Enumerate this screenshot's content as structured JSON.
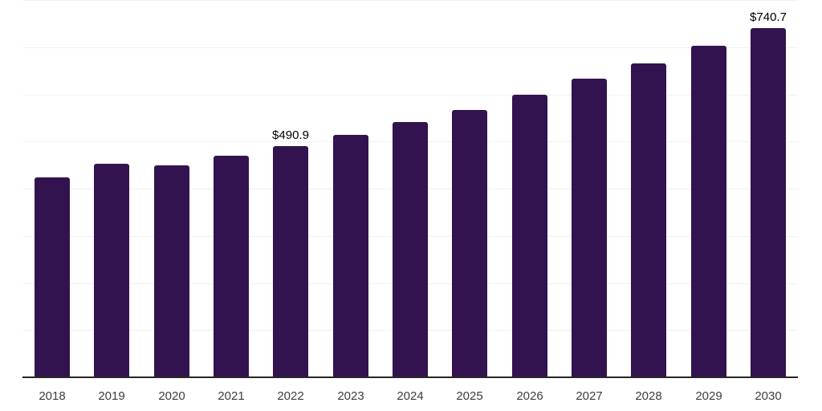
{
  "chart_data": {
    "type": "bar",
    "title": "",
    "xlabel": "",
    "ylabel": "",
    "categories": [
      "2018",
      "2019",
      "2020",
      "2021",
      "2022",
      "2023",
      "2024",
      "2025",
      "2026",
      "2027",
      "2028",
      "2029",
      "2030"
    ],
    "values": [
      424,
      452,
      449,
      469,
      490.9,
      514,
      541,
      566,
      599,
      633,
      666,
      703,
      740.7
    ],
    "annotations": [
      {
        "year": "2022",
        "text": "$490.9"
      },
      {
        "year": "2030",
        "text": "$740.7"
      }
    ],
    "ylim": [
      0,
      800
    ],
    "gridline_step": 100,
    "grid": "horizontal",
    "legend": "none",
    "colors": {
      "bar": "#32134f",
      "gridline": "#f1f1f2",
      "axis_line": "#262626",
      "tick_label": "#3d3d3d",
      "annotation": "#000000",
      "background": "#ffffff"
    }
  }
}
